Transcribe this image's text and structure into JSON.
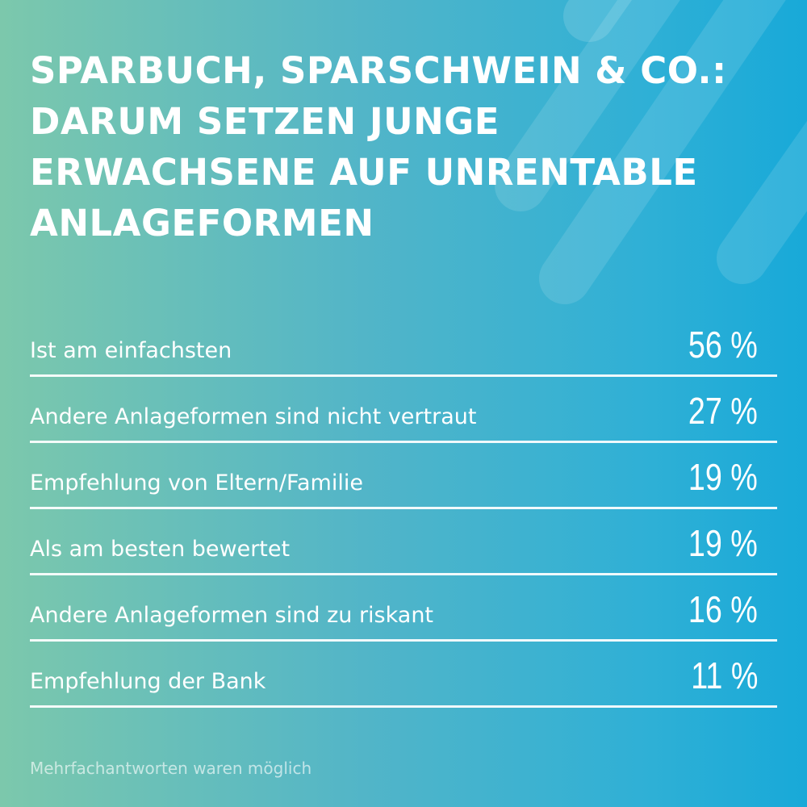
{
  "title_lines": [
    "SPARBUCH, SPARSCHWEIN & CO.:",
    "DARUM SETZEN JUNGE",
    "ERWACHSENE AUF UNRENTABLE",
    "ANLAGEFORMEN"
  ],
  "chart_data": {
    "type": "table",
    "rows": [
      {
        "label": "Ist am einfachsten",
        "value": 56,
        "display": "56 %"
      },
      {
        "label": "Andere Anlageformen sind nicht vertraut",
        "value": 27,
        "display": "27 %"
      },
      {
        "label": "Empfehlung von Eltern/Familie",
        "value": 19,
        "display": "19 %"
      },
      {
        "label": "Als am besten bewertet",
        "value": 19,
        "display": "19 %"
      },
      {
        "label": "Andere Anlageformen sind zu riskant",
        "value": 16,
        "display": "16 %"
      },
      {
        "label": "Empfehlung der Bank",
        "value": 11,
        "display": "11 %"
      }
    ]
  },
  "footnote": "Mehrfachantworten waren möglich",
  "colors": {
    "gradient_start": "#7cc8ac",
    "gradient_end": "#18a9d8",
    "text": "#ffffff"
  }
}
